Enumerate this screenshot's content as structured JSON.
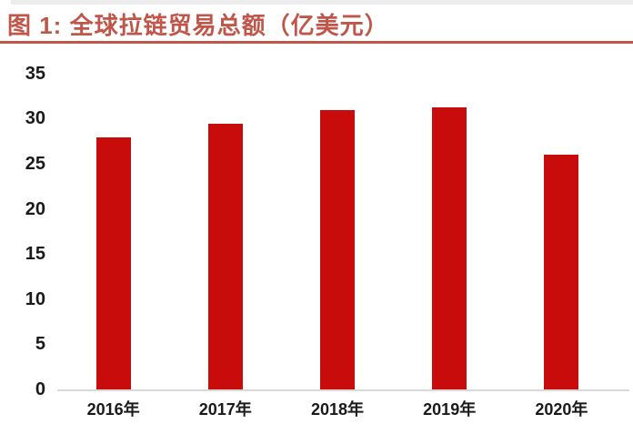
{
  "header": {
    "title": "图 1: 全球拉链贸易总额（亿美元）"
  },
  "chart_data": {
    "type": "bar",
    "title": "全球拉链贸易总额（亿美元）",
    "figure_label": "图 1:",
    "categories": [
      "2016年",
      "2017年",
      "2018年",
      "2019年",
      "2020年"
    ],
    "values": [
      27.9,
      29.4,
      30.9,
      31.2,
      26.0
    ],
    "xlabel": "",
    "ylabel": "",
    "ylim": [
      0,
      35
    ],
    "yticks": [
      0,
      5,
      10,
      15,
      20,
      25,
      30,
      35
    ],
    "grid": false,
    "legend": "none",
    "bar_color": "#c80b0b",
    "axis_line_color": "#d9d9d9",
    "tick_label_color": "#1a1a1a",
    "accent_color": "#c0564a"
  }
}
